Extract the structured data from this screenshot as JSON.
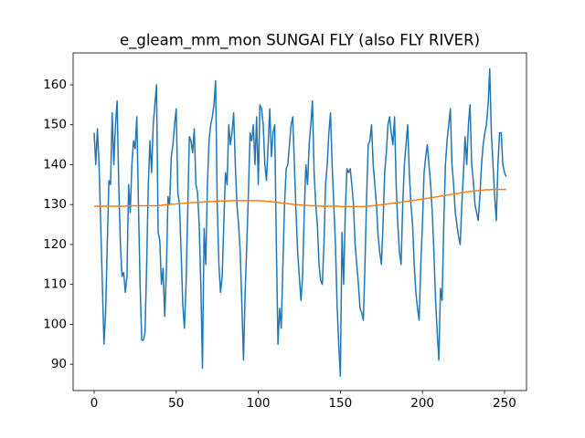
{
  "chart_data": {
    "type": "line",
    "title": "e_gleam_mm_mon SUNGAI FLY (also FLY RIVER)",
    "x": [
      0,
      1,
      2,
      3,
      4,
      5,
      6,
      7,
      8,
      9,
      10,
      11,
      12,
      13,
      14,
      15,
      16,
      17,
      18,
      19,
      20,
      21,
      22,
      23,
      24,
      25,
      26,
      27,
      28,
      29,
      30,
      31,
      32,
      33,
      34,
      35,
      36,
      37,
      38,
      39,
      40,
      41,
      42,
      43,
      44,
      45,
      46,
      47,
      48,
      49,
      50,
      51,
      52,
      53,
      54,
      55,
      56,
      57,
      58,
      59,
      60,
      61,
      62,
      63,
      64,
      65,
      66,
      67,
      68,
      69,
      70,
      71,
      72,
      73,
      74,
      75,
      76,
      77,
      78,
      79,
      80,
      81,
      82,
      83,
      84,
      85,
      86,
      87,
      88,
      89,
      90,
      91,
      92,
      93,
      94,
      95,
      96,
      97,
      98,
      99,
      100,
      101,
      102,
      103,
      104,
      105,
      106,
      107,
      108,
      109,
      110,
      111,
      112,
      113,
      114,
      115,
      116,
      117,
      118,
      119,
      120,
      121,
      122,
      123,
      124,
      125,
      126,
      127,
      128,
      129,
      130,
      131,
      132,
      133,
      134,
      135,
      136,
      137,
      138,
      139,
      140,
      141,
      142,
      143,
      144,
      145,
      146,
      147,
      148,
      149,
      150,
      151,
      152,
      153,
      154,
      155,
      156,
      157,
      158,
      159,
      160,
      161,
      162,
      163,
      164,
      165,
      166,
      167,
      168,
      169,
      170,
      171,
      172,
      173,
      174,
      175,
      176,
      177,
      178,
      179,
      180,
      181,
      182,
      183,
      184,
      185,
      186,
      187,
      188,
      189,
      190,
      191,
      192,
      193,
      194,
      195,
      196,
      197,
      198,
      199,
      200,
      201,
      202,
      203,
      204,
      205,
      206,
      207,
      208,
      209,
      210,
      211,
      212,
      213,
      214,
      215,
      216,
      217,
      218,
      219,
      220,
      221,
      222,
      223,
      224,
      225,
      226,
      227,
      228,
      229,
      230,
      231,
      232,
      233,
      234,
      235,
      236,
      237,
      238,
      239,
      240,
      241,
      242,
      243,
      244,
      245,
      246,
      247,
      248,
      249,
      250,
      251
    ],
    "series": [
      {
        "color": "#1f77b4",
        "values": [
          148,
          140,
          149,
          140,
          125,
          110,
          95,
          103,
          120,
          136,
          135,
          153,
          140,
          150,
          156,
          135,
          120,
          112,
          113,
          108,
          112,
          135,
          128,
          140,
          146,
          144,
          152,
          130,
          110,
          96,
          96,
          98,
          115,
          135,
          146,
          138,
          150,
          155,
          160,
          123,
          121,
          110,
          114,
          102,
          113,
          132,
          130,
          142,
          145,
          150,
          154,
          133,
          130,
          118,
          105,
          99,
          110,
          128,
          147,
          146,
          143,
          149,
          135,
          133,
          125,
          110,
          89,
          124,
          115,
          135,
          146,
          150,
          152,
          155,
          161,
          130,
          115,
          108,
          112,
          125,
          138,
          135,
          150,
          145,
          148,
          153,
          140,
          130,
          125,
          118,
          105,
          91,
          108,
          120,
          133,
          148,
          146,
          150,
          140,
          152,
          135,
          155,
          154,
          150,
          140,
          136,
          145,
          154,
          142,
          148,
          150,
          120,
          95,
          104,
          99,
          115,
          130,
          139,
          140,
          145,
          150,
          152,
          140,
          128,
          118,
          112,
          106,
          112,
          128,
          140,
          135,
          145,
          150,
          156,
          138,
          130,
          125,
          115,
          111,
          110,
          120,
          135,
          140,
          148,
          153,
          140,
          130,
          120,
          105,
          95,
          87,
          123,
          110,
          128,
          139,
          138,
          139,
          135,
          130,
          120,
          115,
          110,
          104,
          103,
          101,
          115,
          132,
          145,
          146,
          150,
          140,
          135,
          130,
          122,
          118,
          115,
          125,
          138,
          143,
          150,
          152,
          148,
          145,
          152,
          135,
          125,
          118,
          115,
          130,
          140,
          145,
          150,
          138,
          130,
          125,
          115,
          108,
          104,
          101,
          115,
          125,
          138,
          142,
          145,
          140,
          135,
          128,
          118,
          106,
          98,
          91,
          109,
          106,
          125,
          140,
          146,
          150,
          154,
          140,
          135,
          128,
          125,
          122,
          120,
          130,
          138,
          147,
          140,
          150,
          155,
          140,
          136,
          130,
          128,
          126,
          132,
          140,
          145,
          148,
          150,
          155,
          164,
          148,
          140,
          132,
          126,
          140,
          148,
          148,
          140,
          138,
          137
        ]
      },
      {
        "color": "#ff7f0e",
        "values": [
          129.6,
          129.6,
          129.6,
          129.6,
          129.6,
          129.6,
          129.6,
          129.6,
          129.6,
          129.6,
          129.6,
          129.6,
          129.6,
          129.6,
          129.6,
          129.6,
          129.6,
          129.6,
          129.6,
          129.6,
          129.7,
          129.7,
          129.7,
          129.7,
          129.7,
          129.7,
          129.7,
          129.7,
          129.7,
          129.7,
          129.7,
          129.7,
          129.7,
          129.7,
          129.7,
          129.7,
          129.7,
          129.7,
          129.7,
          129.7,
          129.8,
          129.8,
          129.9,
          129.9,
          130.0,
          130.0,
          130.0,
          130.1,
          130.1,
          130.1,
          130.2,
          130.2,
          130.2,
          130.3,
          130.3,
          130.3,
          130.4,
          130.4,
          130.4,
          130.5,
          130.5,
          130.5,
          130.5,
          130.6,
          130.6,
          130.6,
          130.6,
          130.7,
          130.7,
          130.7,
          130.7,
          130.8,
          130.8,
          130.8,
          130.8,
          130.8,
          130.9,
          130.9,
          130.9,
          130.9,
          130.9,
          130.9,
          131.0,
          131.0,
          131.0,
          131.0,
          131.0,
          131.0,
          131.0,
          131.0,
          131.0,
          131.0,
          131.0,
          131.0,
          131.0,
          131.0,
          131.0,
          131.0,
          131.0,
          131.0,
          131.0,
          131.0,
          130.9,
          130.9,
          130.9,
          130.8,
          130.8,
          130.8,
          130.7,
          130.7,
          130.6,
          130.6,
          130.5,
          130.5,
          130.4,
          130.4,
          130.3,
          130.3,
          130.2,
          130.2,
          130.1,
          130.1,
          130.0,
          130.0,
          130.0,
          129.9,
          129.9,
          129.9,
          129.8,
          129.8,
          129.8,
          129.8,
          129.7,
          129.7,
          129.7,
          129.7,
          129.7,
          129.6,
          129.6,
          129.6,
          129.6,
          129.6,
          129.6,
          129.6,
          129.6,
          129.6,
          129.6,
          129.6,
          129.6,
          129.6,
          129.5,
          129.5,
          129.5,
          129.5,
          129.5,
          129.5,
          129.5,
          129.5,
          129.5,
          129.5,
          129.5,
          129.5,
          129.5,
          129.5,
          129.5,
          129.6,
          129.6,
          129.6,
          129.6,
          129.7,
          129.7,
          129.8,
          129.8,
          129.9,
          129.9,
          130.0,
          130.0,
          130.1,
          130.1,
          130.2,
          130.2,
          130.3,
          130.3,
          130.4,
          130.4,
          130.5,
          130.5,
          130.6,
          130.7,
          130.7,
          130.8,
          130.8,
          130.9,
          131.0,
          131.0,
          131.1,
          131.1,
          131.2,
          131.3,
          131.3,
          131.4,
          131.4,
          131.5,
          131.6,
          131.6,
          131.7,
          131.8,
          131.8,
          131.9,
          132.0,
          132.0,
          132.1,
          132.2,
          132.2,
          132.3,
          132.4,
          132.4,
          132.5,
          132.6,
          132.6,
          132.7,
          132.8,
          132.8,
          132.9,
          133.0,
          133.0,
          133.1,
          133.2,
          133.2,
          133.3,
          133.3,
          133.4,
          133.4,
          133.5,
          133.5,
          133.6,
          133.6,
          133.6,
          133.7,
          133.7,
          133.7,
          133.7,
          133.8,
          133.8,
          133.8,
          133.8,
          133.8,
          133.8,
          133.8,
          133.8,
          133.8,
          133.8
        ]
      }
    ],
    "xlim": [
      -12.8,
      263.4
    ],
    "ylim": [
      83.4,
      168.0
    ],
    "xticks": [
      0,
      50,
      100,
      150,
      200,
      250
    ],
    "yticks": [
      90,
      100,
      110,
      120,
      130,
      140,
      150,
      160
    ],
    "grid": false
  }
}
